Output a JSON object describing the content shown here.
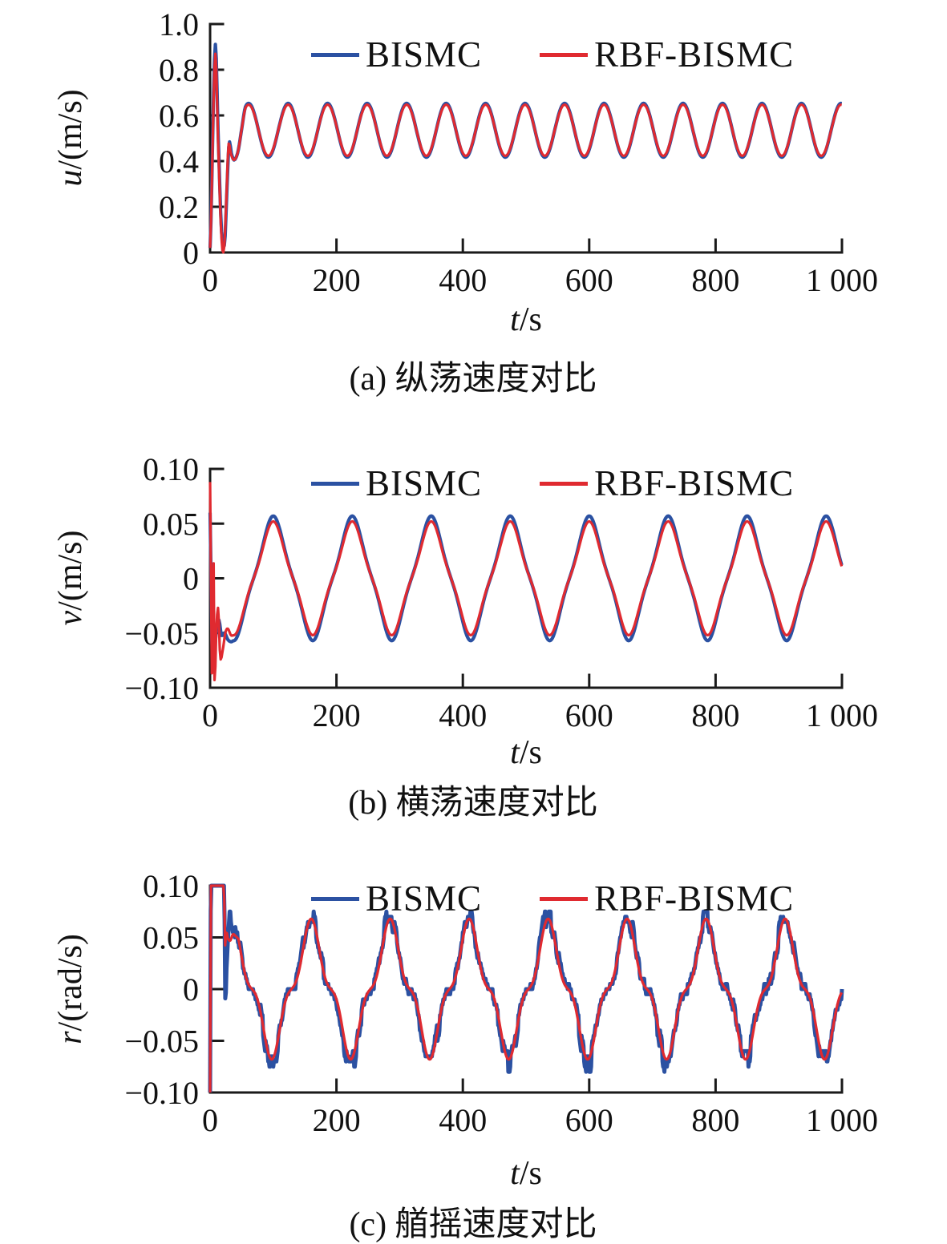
{
  "figure": {
    "background": "#ffffff",
    "axis_color": "#1a1a1a",
    "text_color": "#111111"
  },
  "chart_data": [
    {
      "type": "line",
      "caption": "(a) 纵荡速度对比",
      "xlabel_var": "t",
      "xlabel_unit": "/s",
      "ylabel_var": "u",
      "ylabel_unit": "/(m/s)",
      "xlim": [
        0,
        1000
      ],
      "ylim": [
        0,
        1.0
      ],
      "grid": false,
      "legend_position": "top-inside",
      "xticks": {
        "values": [
          0,
          200,
          400,
          600,
          800,
          1000
        ],
        "labels": [
          "0",
          "200",
          "400",
          "600",
          "800",
          "1 000"
        ]
      },
      "yticks": {
        "values": [
          0,
          0.2,
          0.4,
          0.6,
          0.8,
          1.0
        ],
        "labels": [
          "0",
          "0.2",
          "0.4",
          "0.6",
          "0.8",
          "1.0"
        ]
      },
      "series": [
        {
          "name": "BISMC",
          "color": "#2b51a2",
          "stroke_width": 4.2,
          "description": "oscillates between ~0.42 and ~0.65 after transient spike to 0.90 at t≈8 and dip to ~0.04 at t≈23",
          "keypoints": [
            [
              0,
              0.02
            ],
            [
              8,
              0.9
            ],
            [
              13,
              0.5
            ],
            [
              18,
              0.1
            ],
            [
              23,
              0.04
            ],
            [
              27,
              0.3
            ],
            [
              30,
              0.48
            ],
            [
              34,
              0.43
            ],
            [
              38,
              0.405
            ],
            [
              44,
              0.44
            ],
            [
              50,
              0.54
            ],
            [
              56,
              0.638
            ]
          ],
          "steady_from": 56,
          "steady": {
            "mean": 0.535,
            "amp": 0.118,
            "period": 62.5,
            "peak_t": 61,
            "shape": "sine"
          }
        },
        {
          "name": "RBF-BISMC",
          "color": "#e02a30",
          "stroke_width": 3.2,
          "description": "oscillates between ~0.42 and ~0.65 after transient spike to 0.86 at t≈8 and dip to ~0.015 at t≈22",
          "keypoints": [
            [
              0,
              0.02
            ],
            [
              8,
              0.86
            ],
            [
              13,
              0.46
            ],
            [
              18,
              0.07
            ],
            [
              22,
              0.015
            ],
            [
              26,
              0.25
            ],
            [
              29,
              0.47
            ],
            [
              33,
              0.43
            ],
            [
              38,
              0.405
            ],
            [
              44,
              0.44
            ],
            [
              50,
              0.54
            ],
            [
              56,
              0.633
            ]
          ],
          "steady_from": 56,
          "steady": {
            "mean": 0.535,
            "amp": 0.112,
            "period": 62.5,
            "peak_t": 61,
            "shape": "sine"
          }
        }
      ]
    },
    {
      "type": "line",
      "caption": "(b) 横荡速度对比",
      "xlabel_var": "t",
      "xlabel_unit": "/s",
      "ylabel_var": "v",
      "ylabel_unit": "/(m/s)",
      "xlim": [
        0,
        1000
      ],
      "ylim": [
        -0.1,
        0.1
      ],
      "grid": false,
      "legend_position": "top-inside",
      "xticks": {
        "values": [
          0,
          200,
          400,
          600,
          800,
          1000
        ],
        "labels": [
          "0",
          "200",
          "400",
          "600",
          "800",
          "1 000"
        ]
      },
      "yticks": {
        "values": [
          -0.1,
          -0.05,
          0,
          0.05,
          0.1
        ],
        "labels": [
          "−0.10",
          "−0.05",
          "0",
          "0.05",
          "0.10"
        ]
      },
      "series": [
        {
          "name": "BISMC",
          "color": "#2b51a2",
          "stroke_width": 4.2,
          "description": "triangular oscillation ±0.057, peaks at t≈100+125k, after start-up swings between +0.09 and −0.09",
          "keypoints": [
            [
              0,
              0.06
            ],
            [
              3,
              -0.06
            ],
            [
              6,
              -0.07
            ],
            [
              10,
              -0.048
            ],
            [
              14,
              -0.038
            ],
            [
              18,
              -0.052
            ],
            [
              23,
              -0.05
            ],
            [
              28,
              -0.056
            ],
            [
              33,
              -0.058
            ],
            [
              37,
              -0.057
            ]
          ],
          "steady_from": 37,
          "steady": {
            "mean": 0,
            "amp": 0.057,
            "period": 125,
            "peak_t": 100,
            "shape": "triangle"
          }
        },
        {
          "name": "RBF-BISMC",
          "color": "#e02a30",
          "stroke_width": 3.2,
          "description": "triangular oscillation ±0.052, peaks at t≈100+125k, initial rapid swings 0.09 to −0.095",
          "keypoints": [
            [
              0,
              0.088
            ],
            [
              3,
              -0.09
            ],
            [
              5,
              0.04
            ],
            [
              7,
              -0.093
            ],
            [
              10,
              -0.045
            ],
            [
              13,
              -0.028
            ],
            [
              16,
              -0.072
            ],
            [
              20,
              -0.066
            ],
            [
              24,
              -0.05
            ],
            [
              28,
              -0.046
            ],
            [
              33,
              -0.052
            ],
            [
              37,
              -0.052
            ]
          ],
          "steady_from": 37,
          "steady": {
            "mean": 0,
            "amp": 0.052,
            "period": 125,
            "peak_t": 100,
            "shape": "triangle"
          }
        }
      ]
    },
    {
      "type": "line",
      "caption": "(c) 艏摇速度对比",
      "xlabel_var": "t",
      "xlabel_unit": "/s",
      "ylabel_var": "r",
      "ylabel_unit": "/(rad/s)",
      "xlim": [
        0,
        1000
      ],
      "ylim": [
        -0.1,
        0.1
      ],
      "grid": false,
      "legend_position": "top-inside",
      "xticks": {
        "values": [
          0,
          200,
          400,
          600,
          800,
          1000
        ],
        "labels": [
          "0",
          "200",
          "400",
          "600",
          "800",
          "1 000"
        ]
      },
      "yticks": {
        "values": [
          -0.1,
          -0.05,
          0,
          0.05,
          0.1
        ],
        "labels": [
          "−0.10",
          "−0.05",
          "0",
          "0.05",
          "0.10"
        ]
      },
      "series": [
        {
          "name": "BISMC",
          "color": "#2b51a2",
          "stroke_width": 5,
          "description": "noisy stair-stepped wave ±0.07 with sharp extremes, saturated at 0.10 for t<22, down-spike to −0.009 at t≈24; peaks t≈160+125k, troughs t≈97+125k",
          "keypoints": [
            [
              0,
              -0.1
            ],
            [
              1.2,
              0.1
            ],
            [
              22.5,
              0.1
            ],
            [
              24,
              -0.009
            ],
            [
              26,
              0.02
            ],
            [
              29,
              0.055
            ],
            [
              31,
              0.075
            ],
            [
              34,
              0.06
            ],
            [
              38,
              0.059
            ],
            [
              42,
              0.053
            ],
            [
              45,
              0.051
            ]
          ],
          "steady_from": 45,
          "steady": {
            "mean": 0,
            "amp": 0.072,
            "period": 125,
            "peak_t": 160,
            "shape": "peaky",
            "h3": 0.25
          },
          "noise": {
            "from": 28,
            "step": 4,
            "amp": 0.013,
            "quant": 0.005
          }
        },
        {
          "name": "RBF-BISMC",
          "color": "#e02a30",
          "stroke_width": 3.2,
          "description": "smooth wave ±0.068 with sharp extremes and flat zero-crossings, saturated at 0.10 for t<22; peaks t≈160+125k, troughs t≈97+125k",
          "keypoints": [
            [
              0,
              -0.1
            ],
            [
              1.2,
              0.1
            ],
            [
              12,
              0.1
            ],
            [
              22,
              0.1
            ],
            [
              23.5,
              0.044
            ],
            [
              25.5,
              0.056
            ],
            [
              28,
              0.049
            ],
            [
              32,
              0.047
            ],
            [
              36,
              0.053
            ],
            [
              41,
              0.051
            ],
            [
              45,
              0.0485
            ]
          ],
          "steady_from": 45,
          "steady": {
            "mean": 0,
            "amp": 0.068,
            "period": 125,
            "peak_t": 160,
            "shape": "peaky",
            "h3": 0.25
          }
        }
      ]
    }
  ]
}
